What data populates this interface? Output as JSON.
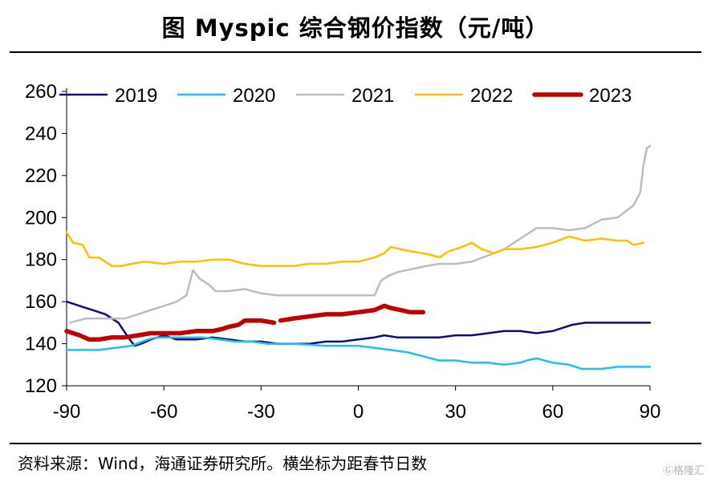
{
  "header": {
    "title": "图    Myspic 综合钢价指数（元/吨）"
  },
  "footer": {
    "source": "资料来源：Wind，海通证券研究所。横坐标为距春节日数",
    "watermark": "Ⓖ格隆汇"
  },
  "chart_data": {
    "type": "line",
    "title": "Myspic 综合钢价指数（元/吨）",
    "xlabel": "",
    "ylabel": "",
    "xlim": [
      -90,
      90
    ],
    "ylim": [
      120,
      260
    ],
    "xticks": [
      -90,
      -60,
      -30,
      0,
      30,
      60,
      90
    ],
    "xtick_labels": [
      "-90",
      "-60",
      "-30",
      "0",
      "30",
      "60",
      "90"
    ],
    "yticks": [
      120,
      140,
      160,
      180,
      200,
      220,
      240,
      260
    ],
    "ytick_labels": [
      "120",
      "140",
      "160",
      "180",
      "200",
      "220",
      "240",
      "260"
    ],
    "grid": false,
    "legend": "top",
    "series": [
      {
        "name": "2019",
        "color": "#0d0d80",
        "width": 2.5,
        "points": [
          [
            -90,
            160
          ],
          [
            -86,
            158
          ],
          [
            -82,
            156
          ],
          [
            -78,
            154
          ],
          [
            -74,
            150
          ],
          [
            -71,
            143
          ],
          [
            -69,
            139
          ],
          [
            -67,
            140
          ],
          [
            -64,
            142
          ],
          [
            -60,
            144
          ],
          [
            -56,
            142
          ],
          [
            -50,
            142
          ],
          [
            -45,
            143
          ],
          [
            -40,
            142
          ],
          [
            -35,
            141
          ],
          [
            -30,
            141
          ],
          [
            -25,
            140
          ],
          [
            -20,
            140
          ],
          [
            -15,
            140
          ],
          [
            -10,
            141
          ],
          [
            -5,
            141
          ],
          [
            0,
            142
          ],
          [
            5,
            143
          ],
          [
            8,
            144
          ],
          [
            12,
            143
          ],
          [
            18,
            143
          ],
          [
            25,
            143
          ],
          [
            30,
            144
          ],
          [
            35,
            144
          ],
          [
            40,
            145
          ],
          [
            45,
            146
          ],
          [
            50,
            146
          ],
          [
            55,
            145
          ],
          [
            60,
            146
          ],
          [
            64,
            148
          ],
          [
            66,
            149
          ],
          [
            70,
            150
          ],
          [
            75,
            150
          ],
          [
            80,
            150
          ],
          [
            85,
            150
          ],
          [
            90,
            150
          ]
        ]
      },
      {
        "name": "2020",
        "color": "#1fbfef",
        "width": 2.5,
        "points": [
          [
            -90,
            137
          ],
          [
            -85,
            137
          ],
          [
            -80,
            137
          ],
          [
            -75,
            138
          ],
          [
            -70,
            139
          ],
          [
            -65,
            142
          ],
          [
            -62,
            143
          ],
          [
            -58,
            143
          ],
          [
            -53,
            143
          ],
          [
            -48,
            143
          ],
          [
            -43,
            142
          ],
          [
            -38,
            141
          ],
          [
            -33,
            141
          ],
          [
            -28,
            140
          ],
          [
            -20,
            140
          ],
          [
            -10,
            139
          ],
          [
            -5,
            139
          ],
          [
            0,
            139
          ],
          [
            5,
            138
          ],
          [
            10,
            137
          ],
          [
            15,
            136
          ],
          [
            20,
            134
          ],
          [
            25,
            132
          ],
          [
            30,
            132
          ],
          [
            35,
            131
          ],
          [
            40,
            131
          ],
          [
            45,
            130
          ],
          [
            50,
            131
          ],
          [
            52,
            132
          ],
          [
            55,
            133
          ],
          [
            60,
            131
          ],
          [
            65,
            130
          ],
          [
            69,
            128
          ],
          [
            75,
            128
          ],
          [
            80,
            129
          ],
          [
            85,
            129
          ],
          [
            90,
            129
          ]
        ]
      },
      {
        "name": "2021",
        "color": "#bdbdbd",
        "width": 2.5,
        "points": [
          [
            -89,
            150
          ],
          [
            -84,
            152
          ],
          [
            -78,
            152
          ],
          [
            -72,
            152
          ],
          [
            -68,
            154
          ],
          [
            -64,
            156
          ],
          [
            -60,
            158
          ],
          [
            -56,
            160
          ],
          [
            -53,
            163
          ],
          [
            -51,
            175
          ],
          [
            -49,
            171
          ],
          [
            -46,
            168
          ],
          [
            -44,
            165
          ],
          [
            -40,
            165
          ],
          [
            -35,
            166
          ],
          [
            -30,
            164
          ],
          [
            -25,
            163
          ],
          [
            -20,
            163
          ],
          [
            -15,
            163
          ],
          [
            -10,
            163
          ],
          [
            -5,
            163
          ],
          [
            0,
            163
          ],
          [
            5,
            163
          ],
          [
            7,
            170
          ],
          [
            9,
            172
          ],
          [
            12,
            174
          ],
          [
            15,
            175
          ],
          [
            18,
            176
          ],
          [
            21,
            177
          ],
          [
            25,
            178
          ],
          [
            30,
            178
          ],
          [
            35,
            179
          ],
          [
            40,
            182
          ],
          [
            45,
            185
          ],
          [
            50,
            190
          ],
          [
            55,
            195
          ],
          [
            60,
            195
          ],
          [
            65,
            194
          ],
          [
            70,
            195
          ],
          [
            75,
            199
          ],
          [
            80,
            200
          ],
          [
            85,
            206
          ],
          [
            87,
            212
          ],
          [
            88,
            225
          ],
          [
            89,
            233
          ],
          [
            90,
            234
          ]
        ]
      },
      {
        "name": "2022",
        "color": "#ffc000",
        "width": 2.5,
        "points": [
          [
            -90,
            193
          ],
          [
            -88,
            188
          ],
          [
            -85,
            187
          ],
          [
            -83,
            181
          ],
          [
            -80,
            181
          ],
          [
            -76,
            177
          ],
          [
            -73,
            177
          ],
          [
            -70,
            178
          ],
          [
            -66,
            179
          ],
          [
            -60,
            178
          ],
          [
            -55,
            179
          ],
          [
            -50,
            179
          ],
          [
            -45,
            180
          ],
          [
            -40,
            180
          ],
          [
            -35,
            178
          ],
          [
            -30,
            177
          ],
          [
            -25,
            177
          ],
          [
            -20,
            177
          ],
          [
            -15,
            178
          ],
          [
            -10,
            178
          ],
          [
            -5,
            179
          ],
          [
            0,
            179
          ],
          [
            5,
            181
          ],
          [
            8,
            183
          ],
          [
            10,
            186
          ],
          [
            13,
            185
          ],
          [
            16,
            184
          ],
          [
            20,
            183
          ],
          [
            23,
            182
          ],
          [
            25,
            181
          ],
          [
            28,
            184
          ],
          [
            32,
            186
          ],
          [
            35,
            188
          ],
          [
            38,
            185
          ],
          [
            42,
            183
          ],
          [
            45,
            185
          ],
          [
            50,
            185
          ],
          [
            55,
            186
          ],
          [
            60,
            188
          ],
          [
            65,
            191
          ],
          [
            70,
            189
          ],
          [
            75,
            190
          ],
          [
            80,
            189
          ],
          [
            83,
            189
          ],
          [
            85,
            187
          ],
          [
            88,
            188
          ]
        ]
      },
      {
        "name": "2023",
        "color": "#c00000",
        "width": 5.5,
        "points": [
          [
            -90,
            146
          ],
          [
            -86,
            144
          ],
          [
            -83,
            142
          ],
          [
            -80,
            142
          ],
          [
            -76,
            143
          ],
          [
            -72,
            143
          ],
          [
            -68,
            144
          ],
          [
            -64,
            145
          ],
          [
            -60,
            145
          ],
          [
            -55,
            145
          ],
          [
            -50,
            146
          ],
          [
            -45,
            146
          ],
          [
            -42,
            147
          ],
          [
            -40,
            148
          ],
          [
            -37,
            149
          ],
          [
            -35,
            151
          ],
          [
            -32,
            151
          ],
          [
            -30,
            151
          ],
          [
            -26,
            150
          ],
          [
            null,
            null
          ],
          [
            -24,
            151
          ],
          [
            -20,
            152
          ],
          [
            -15,
            153
          ],
          [
            -10,
            154
          ],
          [
            -5,
            154
          ],
          [
            0,
            155
          ],
          [
            5,
            156
          ],
          [
            8,
            158
          ],
          [
            10,
            157
          ],
          [
            13,
            156
          ],
          [
            16,
            155
          ],
          [
            20,
            155
          ]
        ]
      }
    ]
  }
}
